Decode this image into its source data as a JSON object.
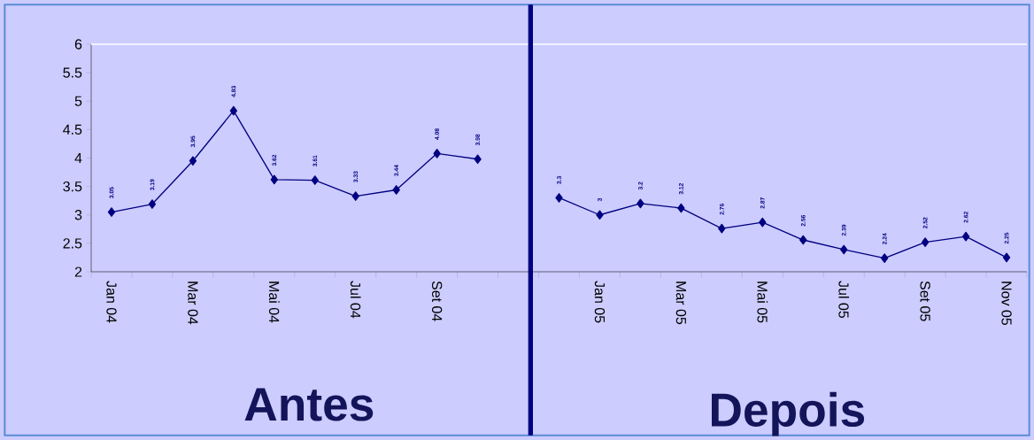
{
  "chart_data": {
    "type": "line",
    "categories": [
      "Jan 04",
      null,
      "Mar 04",
      null,
      "Mai 04",
      null,
      "Jul 04",
      null,
      "Set 04",
      null,
      null,
      null,
      "Jan 05",
      null,
      "Mar 05",
      null,
      "Mai 05",
      null,
      "Jul 05",
      null,
      "Set 05",
      null,
      "Nov 05"
    ],
    "series": [
      {
        "color": "#000080",
        "values": [
          3.05,
          3.19,
          3.95,
          4.83,
          3.62,
          3.61,
          3.33,
          3.44,
          4.08,
          3.98,
          null,
          3.3,
          3,
          3.2,
          3.12,
          2.76,
          2.87,
          2.56,
          2.39,
          2.24,
          2.52,
          2.62,
          2.25
        ]
      }
    ],
    "ylim": [
      2,
      6
    ],
    "yticks": [
      2,
      2.5,
      3,
      3.5,
      4,
      4.5,
      5,
      5.5,
      6
    ],
    "marker": "diamond",
    "line_style": "solid",
    "data_labels": true,
    "grid": false,
    "annotations": [
      "Antes",
      "Depois"
    ]
  }
}
